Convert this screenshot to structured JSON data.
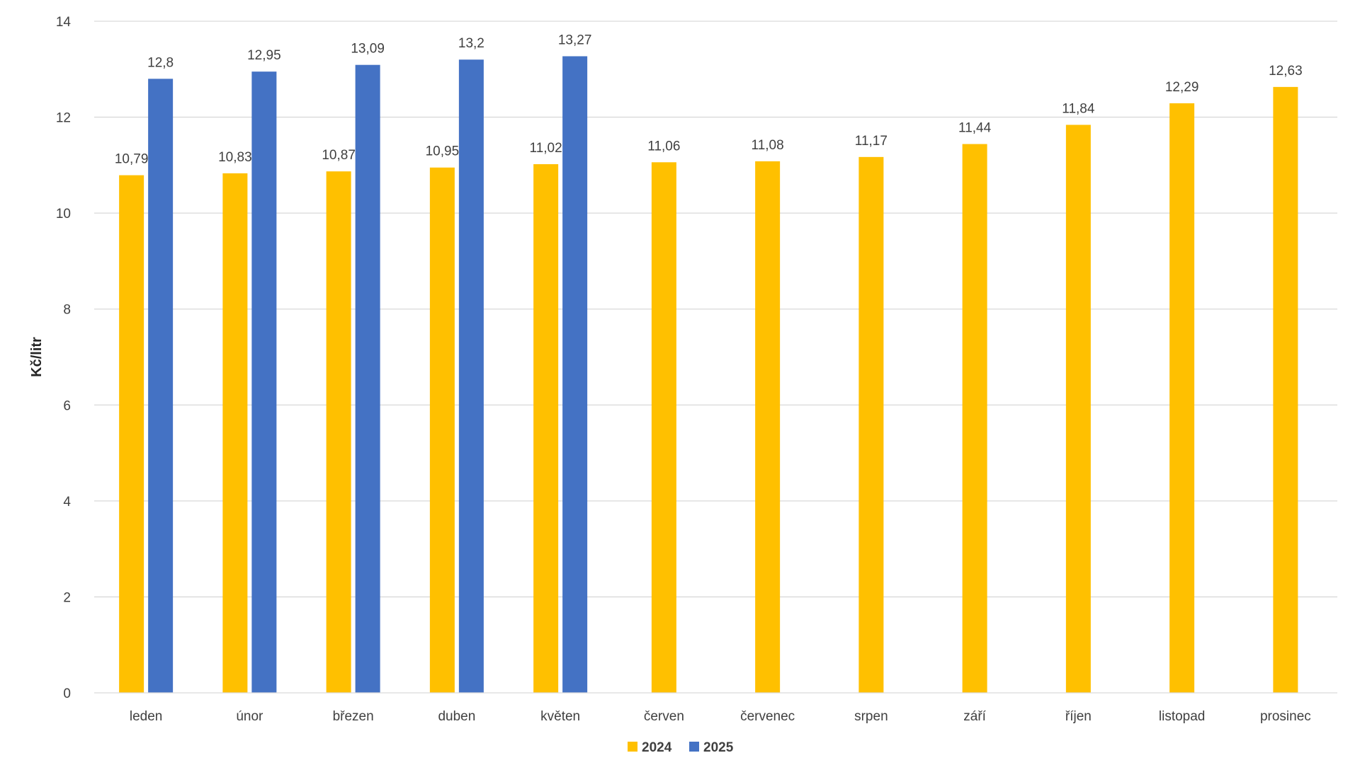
{
  "chart_data": {
    "type": "bar",
    "title": "",
    "xlabel": "",
    "ylabel": "Kč/litr",
    "ylim": [
      0,
      14
    ],
    "yticks": [
      0,
      2,
      4,
      6,
      8,
      10,
      12,
      14
    ],
    "grid": true,
    "legend_position": "bottom",
    "categories": [
      "leden",
      "únor",
      "březen",
      "duben",
      "květen",
      "červen",
      "červenec",
      "srpen",
      "září",
      "říjen",
      "listopad",
      "prosinec"
    ],
    "series": [
      {
        "name": "2024",
        "color": "#FFC000",
        "values": [
          10.79,
          10.83,
          10.87,
          10.95,
          11.02,
          11.06,
          11.08,
          11.17,
          11.44,
          11.84,
          12.29,
          12.63
        ],
        "labels": [
          "10,79",
          "10,83",
          "10,87",
          "10,95",
          "11,02",
          "11,06",
          "11,08",
          "11,17",
          "11,44",
          "11,84",
          "12,29",
          "12,63"
        ]
      },
      {
        "name": "2025",
        "color": "#4472C4",
        "values": [
          12.8,
          12.95,
          13.09,
          13.2,
          13.27,
          null,
          null,
          null,
          null,
          null,
          null,
          null
        ],
        "labels": [
          "12,8",
          "12,95",
          "13,09",
          "13,2",
          "13,27",
          null,
          null,
          null,
          null,
          null,
          null,
          null
        ]
      }
    ]
  }
}
